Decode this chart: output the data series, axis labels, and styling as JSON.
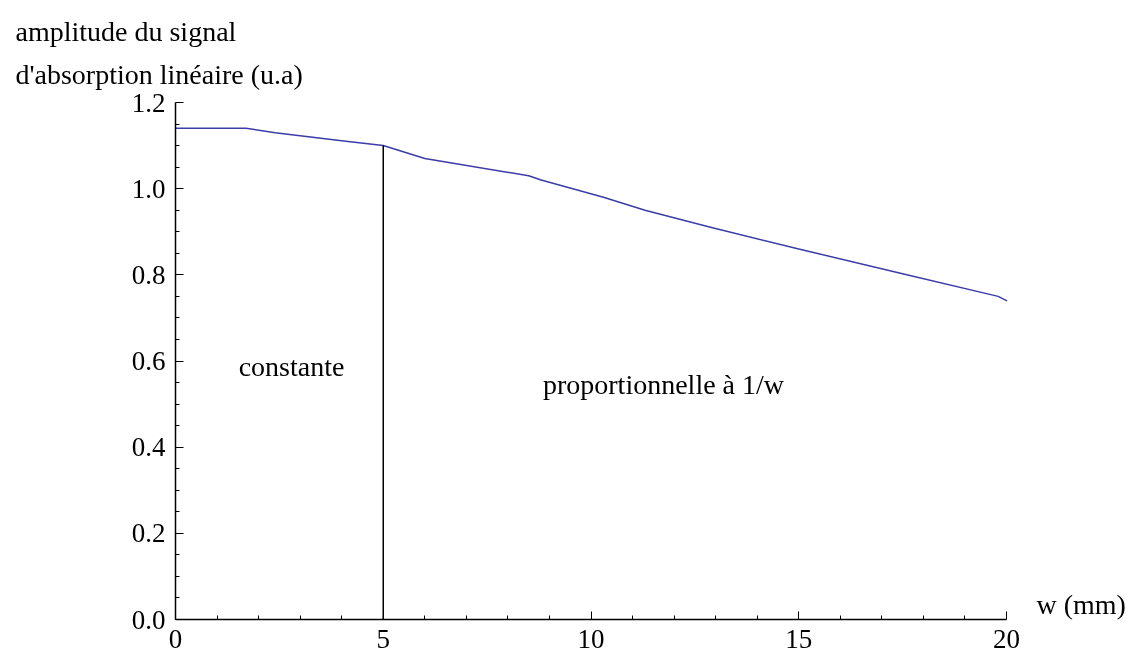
{
  "chart_data": {
    "type": "line",
    "ylabel": "amplitude du signal d'absorption linéaire (u.a)",
    "xlabel": "w (mm)",
    "x": [
      0,
      1.7,
      2.4,
      4.1,
      5,
      6,
      8.5,
      8.8,
      10.3,
      11.3,
      12.9,
      15,
      17.6,
      19.8,
      20
    ],
    "series": [
      {
        "color": "#3c3ca8",
        "values": [
          1.14,
          1.14,
          1.13,
          1.11,
          1.1,
          1.07,
          1.03,
          1.02,
          0.98,
          0.95,
          0.91,
          0.86,
          0.8,
          0.75,
          0.74
        ]
      }
    ],
    "xlim": [
      0,
      20
    ],
    "xticks": [
      0,
      {
        "value": 1,
        "label": null
      },
      {
        "value": 2,
        "label": null
      },
      {
        "value": 3,
        "label": null
      },
      {
        "value": 4,
        "label": null
      },
      5,
      {
        "value": 6,
        "label": null
      },
      {
        "value": 7,
        "label": null
      },
      {
        "value": 8,
        "label": null
      },
      {
        "value": 9,
        "label": null
      },
      10,
      {
        "value": 11,
        "label": null
      },
      {
        "value": 12,
        "label": null
      },
      {
        "value": 13,
        "label": null
      },
      {
        "value": 14,
        "label": null
      },
      15,
      {
        "value": 16,
        "label": null
      },
      {
        "value": 17,
        "label": null
      },
      {
        "value": 18,
        "label": null
      },
      {
        "value": 19,
        "label": null
      },
      20
    ],
    "ylim": [
      0,
      1.2
    ],
    "yticks": [
      {
        "value": 0,
        "label": "0.0"
      },
      {
        "value": 0.05,
        "label": null
      },
      {
        "value": 0.1,
        "label": null
      },
      {
        "value": 0.15,
        "label": null
      },
      {
        "value": 0.2,
        "label": "0.2"
      },
      {
        "value": 0.25,
        "label": null
      },
      {
        "value": 0.3,
        "label": null
      },
      {
        "value": 0.35,
        "label": null
      },
      {
        "value": 0.4,
        "label": "0.4"
      },
      {
        "value": 0.45,
        "label": null
      },
      {
        "value": 0.5,
        "label": null
      },
      {
        "value": 0.55,
        "label": null
      },
      {
        "value": 0.6,
        "label": "0.6"
      },
      {
        "value": 0.65,
        "label": null
      },
      {
        "value": 0.7,
        "label": null
      },
      {
        "value": 0.75,
        "label": null
      },
      {
        "value": 0.8,
        "label": "0.8"
      },
      {
        "value": 0.85,
        "label": null
      },
      {
        "value": 0.9,
        "label": null
      },
      {
        "value": 0.95,
        "label": null
      },
      {
        "value": 1.0,
        "label": "1.0"
      },
      {
        "value": 1.05,
        "label": null
      },
      {
        "value": 1.1,
        "label": null
      },
      {
        "value": 1.15,
        "label": null
      },
      {
        "value": 1.2,
        "label": "1.2"
      }
    ],
    "ref_lines": [
      {
        "axis": "x",
        "value": 5,
        "color": "#000000"
      }
    ],
    "annotations": [
      "constante",
      "proportionnelle à 1/w"
    ]
  }
}
